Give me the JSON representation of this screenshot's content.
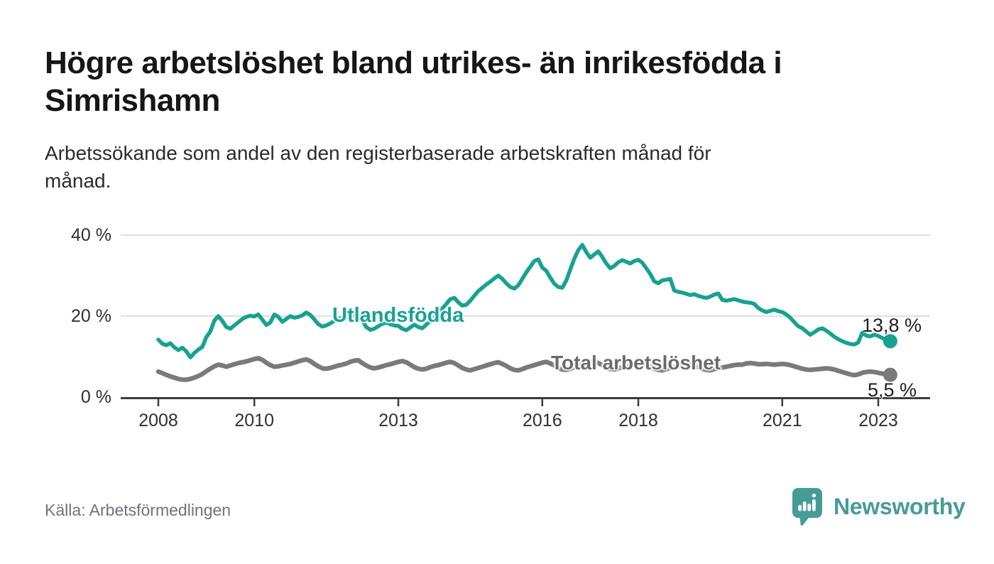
{
  "header": {
    "title_lines": [
      "Högre arbetslöshet bland utrikes- än inrikesfödda i",
      "Simrishamn"
    ],
    "subtitle_lines": [
      "Arbetssökande som andel av den registerbaserade arbetskraften månad för",
      "månad."
    ]
  },
  "chart_data": {
    "type": "line",
    "title": "Högre arbetslöshet bland utrikes- än inrikesfödda i Simrishamn",
    "subtitle": "Arbetssökande som andel av den registerbaserade arbetskraften månad för månad.",
    "xlabel": "",
    "ylabel": "",
    "ylim": [
      0,
      42
    ],
    "y_ticks": [
      "0 %",
      "20 %",
      "40 %"
    ],
    "x_ticks": [
      "2008",
      "2010",
      "2013",
      "2016",
      "2018",
      "2021",
      "2023"
    ],
    "start_year": 2008,
    "points_per_year": 12,
    "grid": "horizontal-light",
    "legend": "inline-labels",
    "series": [
      {
        "name": "Utlandsfödda",
        "end_label": "13,8 %",
        "end_value": 13.8,
        "color": "#18a191",
        "values": [
          14.2,
          13.2,
          12.8,
          13.3,
          12.3,
          11.6,
          12.2,
          11.3,
          9.8,
          10.9,
          11.7,
          12.4,
          14.8,
          16.2,
          18.9,
          20.0,
          18.8,
          17.3,
          16.9,
          17.7,
          18.5,
          19.3,
          19.8,
          20.1,
          19.9,
          20.4,
          19.1,
          17.8,
          18.4,
          20.4,
          19.8,
          18.6,
          19.3,
          20.0,
          19.6,
          19.8,
          20.2,
          20.9,
          20.3,
          19.2,
          18.0,
          17.4,
          17.7,
          18.2,
          18.8,
          19.3,
          19.6,
          19.9,
          19.6,
          20.3,
          20.6,
          18.9,
          17.3,
          16.6,
          16.9,
          17.5,
          18.1,
          18.4,
          18.0,
          17.7,
          17.6,
          16.9,
          16.5,
          17.2,
          17.9,
          17.3,
          17.0,
          17.9,
          18.8,
          19.8,
          20.8,
          21.9,
          23.0,
          24.2,
          24.5,
          23.4,
          22.6,
          22.8,
          23.8,
          25.0,
          26.2,
          27.0,
          27.8,
          28.5,
          29.3,
          30.0,
          29.2,
          28.1,
          27.2,
          26.8,
          27.6,
          29.2,
          30.8,
          32.2,
          33.6,
          34.0,
          32.0,
          31.2,
          29.5,
          28.0,
          27.2,
          27.0,
          28.8,
          31.5,
          34.2,
          36.3,
          37.6,
          35.8,
          34.4,
          35.2,
          36.0,
          34.6,
          33.0,
          31.8,
          32.4,
          33.3,
          33.8,
          33.4,
          33.0,
          33.6,
          33.9,
          33.2,
          31.8,
          30.4,
          28.6,
          28.1,
          28.8,
          29.0,
          29.2,
          26.3,
          26.0,
          25.8,
          25.5,
          25.2,
          25.4,
          25.0,
          24.7,
          24.5,
          24.8,
          25.3,
          25.6,
          24.0,
          23.8,
          24.0,
          24.2,
          23.9,
          23.6,
          23.4,
          23.3,
          23.0,
          22.0,
          21.4,
          21.0,
          21.3,
          21.6,
          21.2,
          21.0,
          20.4,
          19.6,
          18.5,
          17.5,
          17.0,
          16.2,
          15.4,
          16.0,
          16.7,
          17.0,
          16.4,
          15.7,
          14.9,
          14.3,
          13.8,
          13.4,
          13.1,
          13.0,
          13.5,
          15.9,
          15.2,
          15.0,
          15.4,
          15.1,
          14.6,
          14.1,
          13.8
        ]
      },
      {
        "name": "Total arbetslöshet",
        "end_label": "5,5 %",
        "end_value": 5.5,
        "color": "#7a7a7a",
        "values": [
          6.3,
          5.9,
          5.5,
          5.1,
          4.8,
          4.5,
          4.3,
          4.3,
          4.5,
          4.8,
          5.2,
          5.7,
          6.4,
          7.0,
          7.6,
          8.0,
          7.8,
          7.5,
          7.8,
          8.1,
          8.4,
          8.6,
          8.8,
          9.1,
          9.4,
          9.6,
          9.2,
          8.5,
          7.9,
          7.5,
          7.6,
          7.8,
          8.0,
          8.2,
          8.5,
          8.8,
          9.1,
          9.3,
          8.9,
          8.2,
          7.6,
          7.1,
          7.0,
          7.2,
          7.5,
          7.8,
          8.0,
          8.3,
          8.7,
          9.0,
          9.1,
          8.4,
          7.8,
          7.3,
          7.1,
          7.3,
          7.6,
          7.9,
          8.1,
          8.4,
          8.7,
          8.9,
          8.6,
          8.0,
          7.4,
          7.0,
          6.8,
          7.0,
          7.4,
          7.7,
          7.9,
          8.2,
          8.5,
          8.7,
          8.4,
          7.8,
          7.2,
          6.8,
          6.6,
          6.9,
          7.2,
          7.5,
          7.8,
          8.1,
          8.4,
          8.6,
          8.2,
          7.7,
          7.1,
          6.7,
          6.6,
          6.9,
          7.3,
          7.6,
          7.9,
          8.2,
          8.5,
          8.7,
          8.3,
          7.8,
          7.2,
          6.8,
          6.7,
          7.0,
          7.4,
          7.7,
          8.0,
          8.3,
          8.6,
          8.7,
          8.4,
          7.9,
          7.3,
          6.9,
          6.8,
          7.1,
          7.4,
          7.6,
          7.8,
          8.0,
          8.2,
          8.3,
          8.0,
          7.5,
          7.0,
          6.7,
          6.6,
          6.9,
          7.2,
          7.4,
          7.6,
          7.8,
          8.0,
          8.1,
          7.8,
          7.4,
          7.0,
          6.7,
          6.6,
          6.9,
          7.1,
          7.3,
          7.5,
          7.7,
          7.9,
          8.0,
          8.0,
          8.3,
          8.4,
          8.3,
          8.1,
          8.1,
          8.2,
          8.1,
          8.0,
          8.1,
          8.2,
          8.1,
          7.9,
          7.6,
          7.3,
          7.0,
          6.8,
          6.7,
          6.8,
          6.9,
          7.0,
          7.1,
          7.0,
          6.8,
          6.5,
          6.2,
          5.9,
          5.6,
          5.4,
          5.6,
          6.0,
          6.2,
          6.3,
          6.2,
          6.0,
          5.8,
          5.6,
          5.5
        ]
      }
    ]
  },
  "footer": {
    "source": "Källa: Arbetsförmedlingen",
    "brand": "Newsworthy"
  },
  "colors": {
    "foreign_line": "#18a191",
    "foreign_label": "#17a293",
    "total_line": "#7a7a7a",
    "total_label": "#6b6b6b",
    "grid": "#dedede",
    "axis_line": "#3c3c3c",
    "axis_text": "#303030",
    "value_label_text": "#1f1f1f",
    "brand_teal": "#459c96",
    "source_text": "#72727b"
  }
}
